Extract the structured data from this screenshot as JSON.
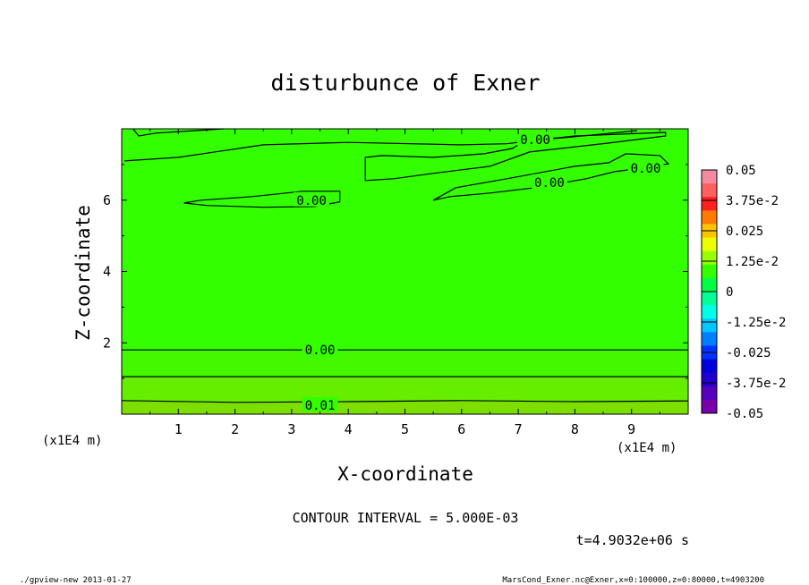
{
  "chart_data": {
    "type": "heatmap",
    "title": "disturbunce of Exner",
    "xlabel": "X-coordinate",
    "ylabel": "Z-coordinate",
    "x_unit": "(x1E4 m)",
    "y_unit": "(x1E4 m)",
    "xlim": [
      0,
      10
    ],
    "ylim": [
      0,
      8
    ],
    "x_ticks": [
      "1",
      "2",
      "3",
      "4",
      "5",
      "6",
      "7",
      "8",
      "9"
    ],
    "y_ticks": [
      "2",
      "4",
      "6"
    ],
    "contour_interval_text": "CONTOUR INTERVAL = 5.000E-03",
    "time_text": "t=4.9032e+06 s",
    "colorbar": {
      "min": -0.05,
      "max": 0.05,
      "labels": [
        "0.05",
        "3.75e-2",
        "0.025",
        "1.25e-2",
        "0",
        "-1.25e-2",
        "-0.025",
        "-3.75e-2",
        "-0.05"
      ],
      "colors": [
        "#f48aa0",
        "#ff6060",
        "#ff2020",
        "#ff7a00",
        "#ffc400",
        "#eaff00",
        "#99ff00",
        "#33ff00",
        "#00ff44",
        "#00ff99",
        "#00ffe6",
        "#00c8ff",
        "#0080ff",
        "#0033ff",
        "#0000dd",
        "#2200cc",
        "#5500bb",
        "#7700aa"
      ]
    },
    "field_colors": {
      "base": "#33ff00",
      "band_1": "#44f800",
      "band_2": "#66ee00",
      "band_3": "#7ddf00"
    },
    "contour_labels": [
      {
        "text": "0.00",
        "x": 3.35,
        "z": 6.0
      },
      {
        "text": "0.00",
        "x": 7.3,
        "z": 7.7
      },
      {
        "text": "0.00",
        "x": 7.55,
        "z": 6.5
      },
      {
        "text": "0.00",
        "x": 9.25,
        "z": 6.9
      },
      {
        "text": "0.00",
        "x": 3.5,
        "z": 1.8
      },
      {
        "text": "0.01",
        "x": 3.5,
        "z": 0.25
      }
    ]
  },
  "footer": {
    "left": "./gpview-new  2013-01-27",
    "right": "MarsCond_Exner.nc@Exner,x=0:100000,z=0:80000,t=4903200"
  }
}
